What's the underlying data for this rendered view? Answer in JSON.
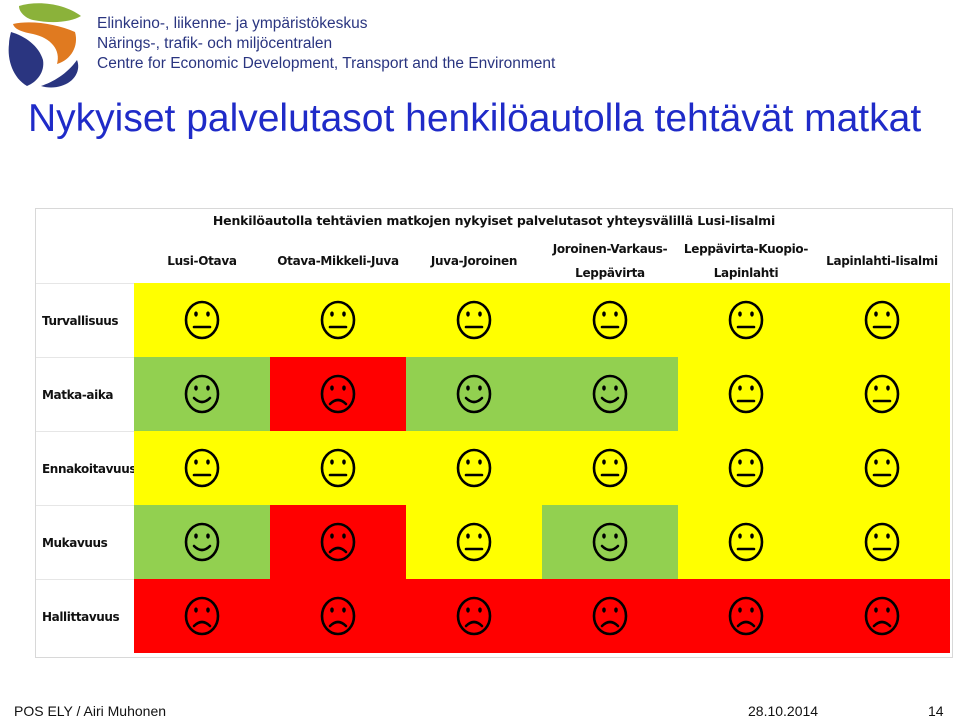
{
  "header": {
    "org_lines": [
      "Elinkeino-, liikenne- ja ympäristökeskus",
      "Närings-, trafik- och miljöcentralen",
      "Centre for Economic Development, Transport and the Environment"
    ],
    "logo_icon": "ely-logo-icon"
  },
  "slide": {
    "title": "Nykyiset palvelutasot henkilöautolla tehtävät matkat"
  },
  "table": {
    "title": "Henkilöautolla tehtävien matkojen nykyiset palvelutasot yhteysvälillä Lusi-Iisalmi",
    "columns": [
      [
        "Lusi-Otava"
      ],
      [
        "Otava-Mikkeli-Juva"
      ],
      [
        "Juva-Joroinen"
      ],
      [
        "Joroinen-Varkaus-",
        "Leppävirta"
      ],
      [
        "Leppävirta-Kuopio-",
        "Lapinlahti"
      ],
      [
        "Lapinlahti-Iisalmi"
      ]
    ],
    "rows": [
      {
        "label": "Turvallisuus",
        "levels": [
          "neutral",
          "neutral",
          "neutral",
          "neutral",
          "neutral",
          "neutral"
        ]
      },
      {
        "label": "Matka-aika",
        "levels": [
          "good",
          "poor",
          "good",
          "good",
          "neutral",
          "neutral"
        ]
      },
      {
        "label": "Ennakoitavuus",
        "levels": [
          "neutral",
          "neutral",
          "neutral",
          "neutral",
          "neutral",
          "neutral"
        ]
      },
      {
        "label": "Mukavuus",
        "levels": [
          "good",
          "poor",
          "neutral",
          "good",
          "neutral",
          "neutral"
        ]
      },
      {
        "label": "Hallittavuus",
        "levels": [
          "poor",
          "poor",
          "poor",
          "poor",
          "poor",
          "poor"
        ]
      }
    ],
    "level_colors": {
      "good": "#92d050",
      "neutral": "#ffff00",
      "poor": "#ff0000"
    },
    "icons": {
      "good": "smiling-face-icon",
      "neutral": "neutral-face-icon",
      "poor": "sad-face-icon"
    }
  },
  "footer": {
    "left": "POS ELY / Airi Muhonen",
    "date": "28.10.2014",
    "page": "14"
  }
}
